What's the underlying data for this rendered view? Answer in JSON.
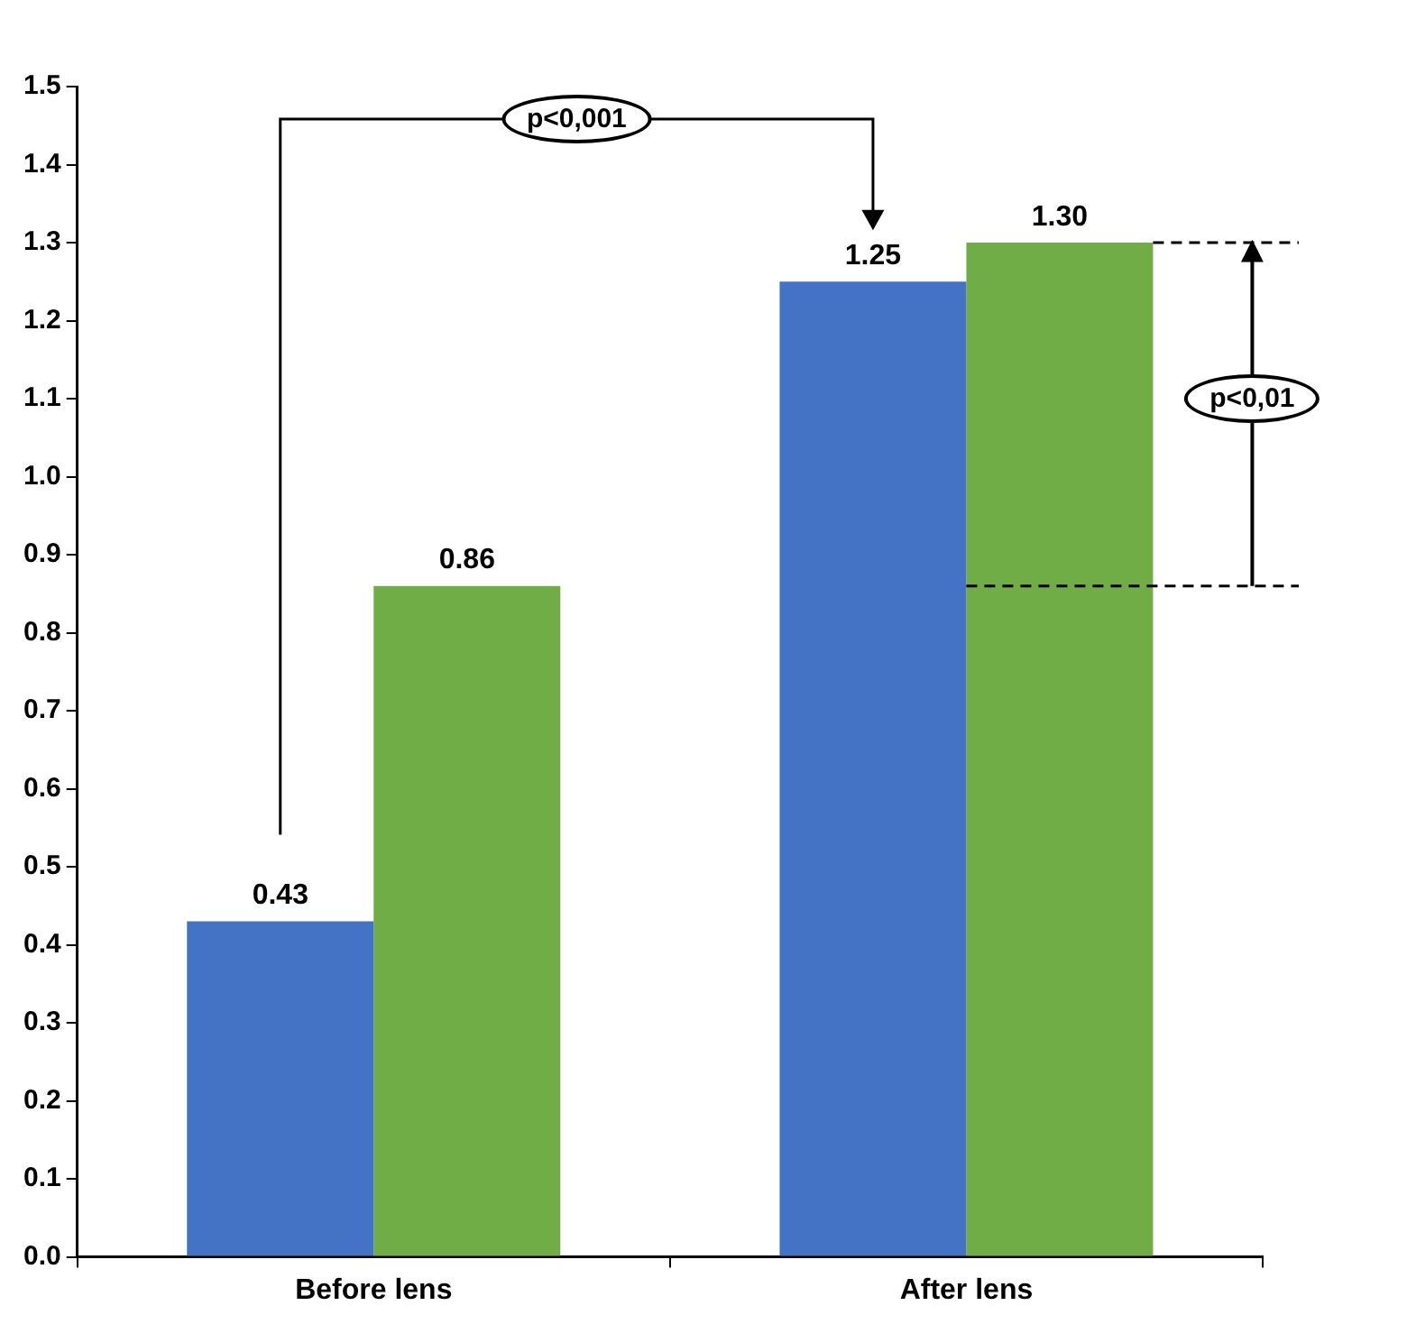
{
  "chart_data": {
    "type": "bar",
    "categories": [
      "Before lens",
      "After lens"
    ],
    "series": [
      {
        "color": "#4472c4",
        "values": [
          0.43,
          1.25
        ],
        "value_labels": [
          "0.43",
          "1.25"
        ]
      },
      {
        "color": "#70ad47",
        "values": [
          0.86,
          1.3
        ],
        "value_labels": [
          "0.86",
          "1.30"
        ]
      }
    ],
    "ylim": [
      0,
      1.5
    ],
    "yticks": [
      {
        "value": 0,
        "label": "0.0"
      },
      0.1,
      0.2,
      0.3,
      0.4,
      0.5,
      0.6,
      0.7,
      0.8,
      0.9,
      {
        "value": 1,
        "label": "1.0"
      },
      1.1,
      1.2,
      1.3,
      1.4,
      1.5
    ],
    "grid": false,
    "legend": false,
    "data_labels": true,
    "ref_lines": [
      {
        "axis": "y",
        "value": 0.86,
        "line_style": "dashed",
        "color": "#000000"
      },
      {
        "axis": "y",
        "value": 1.3,
        "line_style": "dashed",
        "color": "#000000"
      }
    ],
    "annotations": [
      "p<0,001",
      "p<0,01"
    ]
  }
}
